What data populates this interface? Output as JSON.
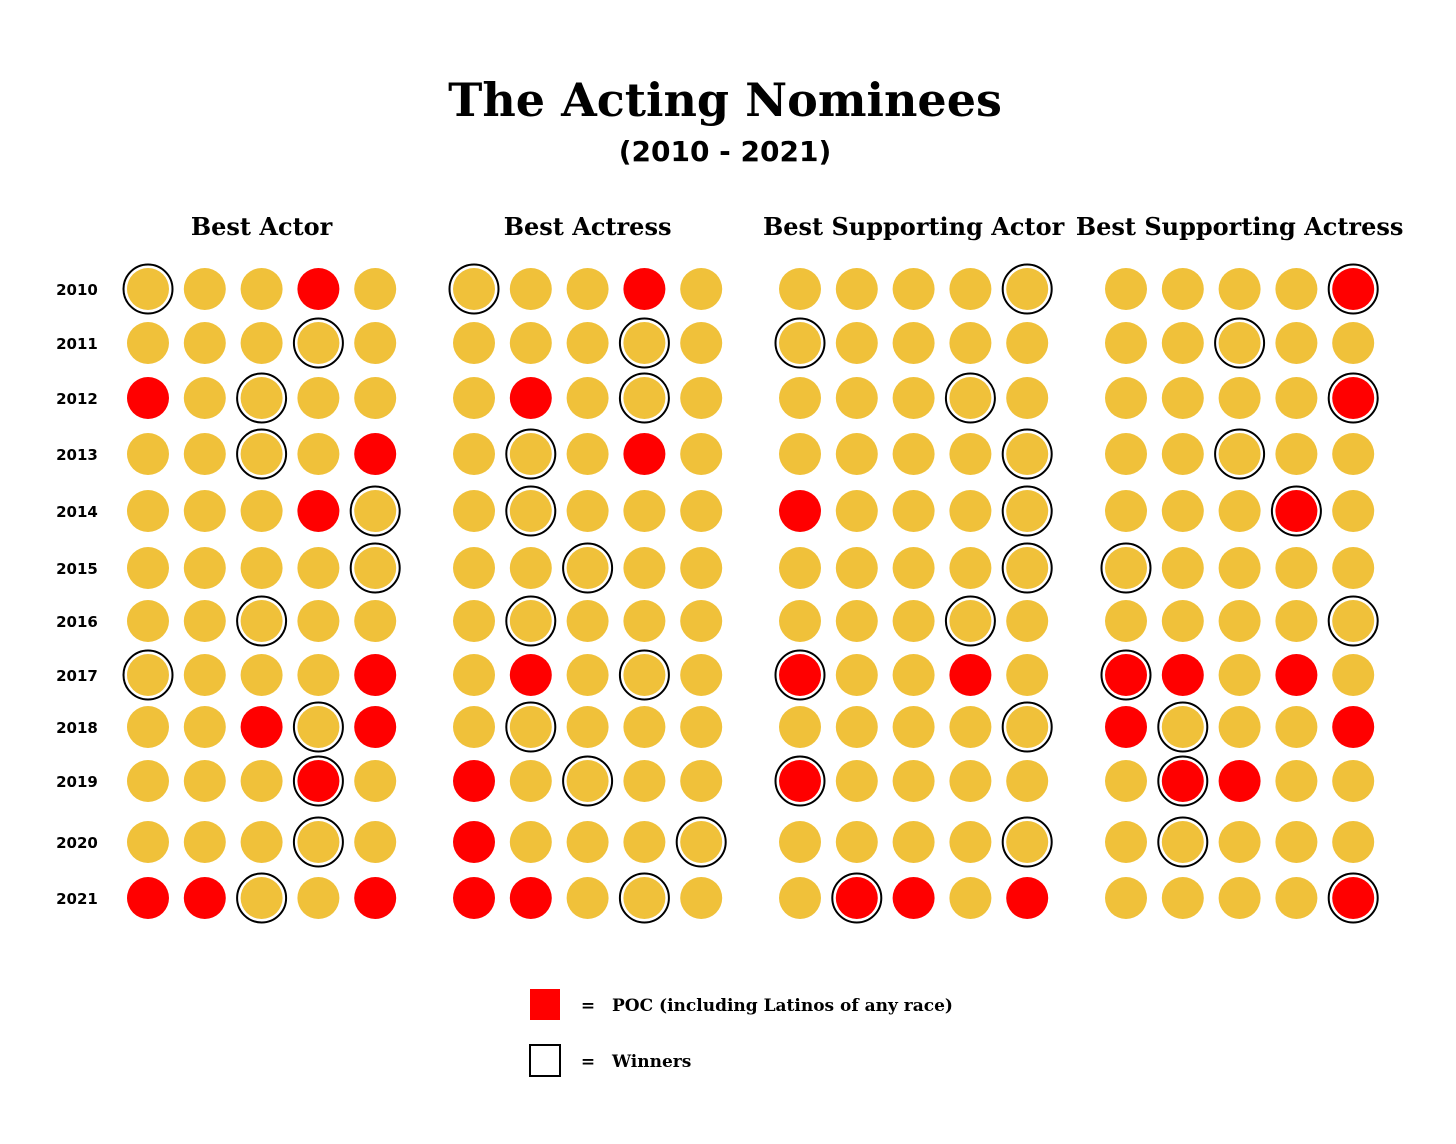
{
  "colors": {
    "white_nominee": "#f0c13a",
    "poc_nominee": "#ff0000",
    "winner_ring": "#000000"
  },
  "chart_data": {
    "type": "dot-matrix",
    "title": "The Acting Nominees",
    "subtitle": "(2010 - 2021)",
    "years": [
      "2010",
      "2011",
      "2012",
      "2013",
      "2014",
      "2015",
      "2016",
      "2017",
      "2018",
      "2019",
      "2020",
      "2021"
    ],
    "categories": [
      {
        "name": "Best Actor",
        "poc": [
          [
            0,
            0,
            0,
            1,
            0
          ],
          [
            0,
            0,
            0,
            0,
            0
          ],
          [
            1,
            0,
            0,
            0,
            0
          ],
          [
            0,
            0,
            0,
            0,
            1
          ],
          [
            0,
            0,
            0,
            1,
            0
          ],
          [
            0,
            0,
            0,
            0,
            0
          ],
          [
            0,
            0,
            0,
            0,
            0
          ],
          [
            0,
            0,
            0,
            0,
            1
          ],
          [
            0,
            0,
            1,
            0,
            1
          ],
          [
            0,
            0,
            0,
            1,
            0
          ],
          [
            0,
            0,
            0,
            0,
            0
          ],
          [
            1,
            1,
            0,
            0,
            1
          ]
        ],
        "winner": [
          0,
          3,
          2,
          2,
          4,
          4,
          2,
          0,
          3,
          3,
          3,
          2
        ]
      },
      {
        "name": "Best Actress",
        "poc": [
          [
            0,
            0,
            0,
            1,
            0
          ],
          [
            0,
            0,
            0,
            0,
            0
          ],
          [
            0,
            1,
            0,
            0,
            0
          ],
          [
            0,
            0,
            0,
            1,
            0
          ],
          [
            0,
            0,
            0,
            0,
            0
          ],
          [
            0,
            0,
            0,
            0,
            0
          ],
          [
            0,
            0,
            0,
            0,
            0
          ],
          [
            0,
            1,
            0,
            0,
            0
          ],
          [
            0,
            0,
            0,
            0,
            0
          ],
          [
            1,
            0,
            0,
            0,
            0
          ],
          [
            1,
            0,
            0,
            0,
            0
          ],
          [
            1,
            1,
            0,
            0,
            0
          ]
        ],
        "winner": [
          0,
          3,
          3,
          1,
          1,
          2,
          1,
          3,
          1,
          2,
          4,
          3
        ]
      },
      {
        "name": "Best Supporting Actor",
        "poc": [
          [
            0,
            0,
            0,
            0,
            0
          ],
          [
            0,
            0,
            0,
            0,
            0
          ],
          [
            0,
            0,
            0,
            0,
            0
          ],
          [
            0,
            0,
            0,
            0,
            0
          ],
          [
            1,
            0,
            0,
            0,
            0
          ],
          [
            0,
            0,
            0,
            0,
            0
          ],
          [
            0,
            0,
            0,
            0,
            0
          ],
          [
            1,
            0,
            0,
            1,
            0
          ],
          [
            0,
            0,
            0,
            0,
            0
          ],
          [
            1,
            0,
            0,
            0,
            0
          ],
          [
            0,
            0,
            0,
            0,
            0
          ],
          [
            0,
            1,
            1,
            0,
            1
          ]
        ],
        "winner": [
          4,
          0,
          3,
          4,
          4,
          4,
          3,
          0,
          4,
          0,
          4,
          1
        ]
      },
      {
        "name": "Best Supporting Actress",
        "poc": [
          [
            0,
            0,
            0,
            0,
            1
          ],
          [
            0,
            0,
            0,
            0,
            0
          ],
          [
            0,
            0,
            0,
            0,
            1
          ],
          [
            0,
            0,
            0,
            0,
            0
          ],
          [
            0,
            0,
            0,
            1,
            0
          ],
          [
            0,
            0,
            0,
            0,
            0
          ],
          [
            0,
            0,
            0,
            0,
            0
          ],
          [
            1,
            1,
            0,
            1,
            0
          ],
          [
            1,
            0,
            0,
            0,
            1
          ],
          [
            0,
            1,
            1,
            0,
            0
          ],
          [
            0,
            0,
            0,
            0,
            0
          ],
          [
            0,
            0,
            0,
            0,
            1
          ]
        ],
        "winner": [
          4,
          2,
          4,
          2,
          3,
          0,
          4,
          0,
          1,
          1,
          1,
          4
        ]
      }
    ],
    "legend": [
      {
        "equals": "=",
        "label": "POC (including Latinos of any race)"
      },
      {
        "equals": "=",
        "label": "Winners"
      }
    ]
  }
}
